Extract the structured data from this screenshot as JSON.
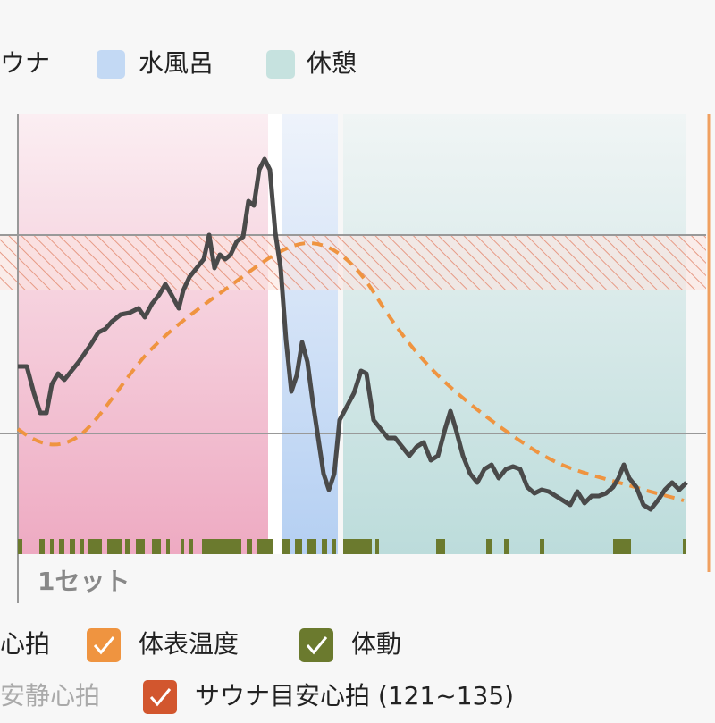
{
  "legend_top": {
    "items": [
      "ウナ",
      "水風呂",
      "休憩"
    ]
  },
  "chart": {
    "set_label": "1セット"
  },
  "legend_bottom": {
    "items": [
      "心拍",
      "体表温度",
      "体動",
      "安静心拍",
      "サウナ目安心拍 (121~135)"
    ]
  }
}
